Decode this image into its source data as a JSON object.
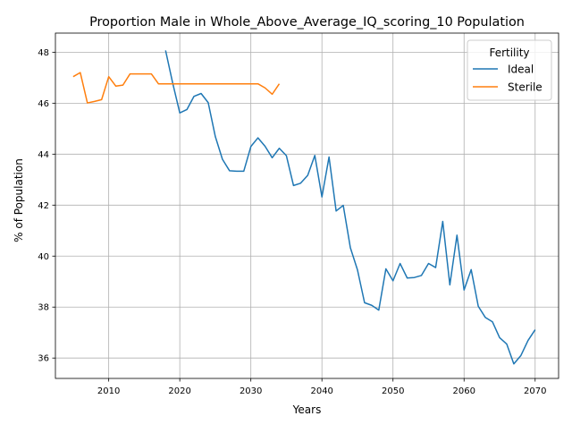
{
  "chart_data": {
    "type": "line",
    "title": "Proportion Male in Whole_Above_Average_IQ_scoring_10 Population",
    "xlabel": "Years",
    "ylabel": "% of Population",
    "xlim": [
      2002.5,
      2073.3
    ],
    "ylim": [
      35.2,
      48.75
    ],
    "x_ticks": [
      2010,
      2020,
      2030,
      2040,
      2050,
      2060,
      2070
    ],
    "y_ticks": [
      36,
      38,
      40,
      42,
      44,
      46,
      48
    ],
    "grid": true,
    "legend": {
      "title": "Fertility",
      "position": "top-right"
    },
    "series": [
      {
        "name": "Ideal",
        "color": "#1f77b4",
        "x": [
          2018,
          2019,
          2020,
          2021,
          2022,
          2023,
          2024,
          2025,
          2026,
          2027,
          2028,
          2029,
          2030,
          2031,
          2032,
          2033,
          2034,
          2035,
          2036,
          2037,
          2038,
          2039,
          2040,
          2041,
          2042,
          2043,
          2044,
          2045,
          2046,
          2047,
          2048,
          2049,
          2050,
          2051,
          2052,
          2053,
          2054,
          2055,
          2056,
          2057,
          2058,
          2059,
          2060,
          2061,
          2062,
          2063,
          2064,
          2065,
          2066,
          2067,
          2068,
          2069,
          2070
        ],
        "y": [
          48.07,
          46.79,
          45.62,
          45.75,
          46.27,
          46.38,
          46.02,
          44.69,
          43.8,
          43.35,
          43.33,
          43.33,
          44.3,
          44.64,
          44.31,
          43.86,
          44.23,
          43.94,
          42.77,
          42.86,
          43.17,
          43.95,
          42.32,
          43.89,
          41.77,
          41.99,
          40.33,
          39.46,
          38.17,
          38.07,
          37.88,
          39.5,
          39.03,
          39.71,
          39.14,
          39.16,
          39.24,
          39.71,
          39.55,
          41.36,
          38.87,
          40.82,
          38.67,
          39.47,
          38.03,
          37.59,
          37.42,
          36.8,
          36.55,
          35.77,
          36.1,
          36.69,
          37.11
        ]
      },
      {
        "name": "Sterile",
        "color": "#ff7f0e",
        "x": [
          2005,
          2006,
          2007,
          2008,
          2009,
          2010,
          2011,
          2012,
          2013,
          2014,
          2015,
          2016,
          2017,
          2018,
          2019,
          2020,
          2021,
          2022,
          2023,
          2024,
          2025,
          2026,
          2027,
          2028,
          2029,
          2030,
          2031,
          2032,
          2033,
          2034
        ],
        "y": [
          47.04,
          47.2,
          46.01,
          46.07,
          46.14,
          47.04,
          46.67,
          46.71,
          47.15,
          47.15,
          47.15,
          47.15,
          46.76,
          46.76,
          46.76,
          46.76,
          46.76,
          46.76,
          46.76,
          46.76,
          46.76,
          46.76,
          46.76,
          46.76,
          46.76,
          46.76,
          46.76,
          46.6,
          46.35,
          46.76
        ]
      }
    ]
  }
}
